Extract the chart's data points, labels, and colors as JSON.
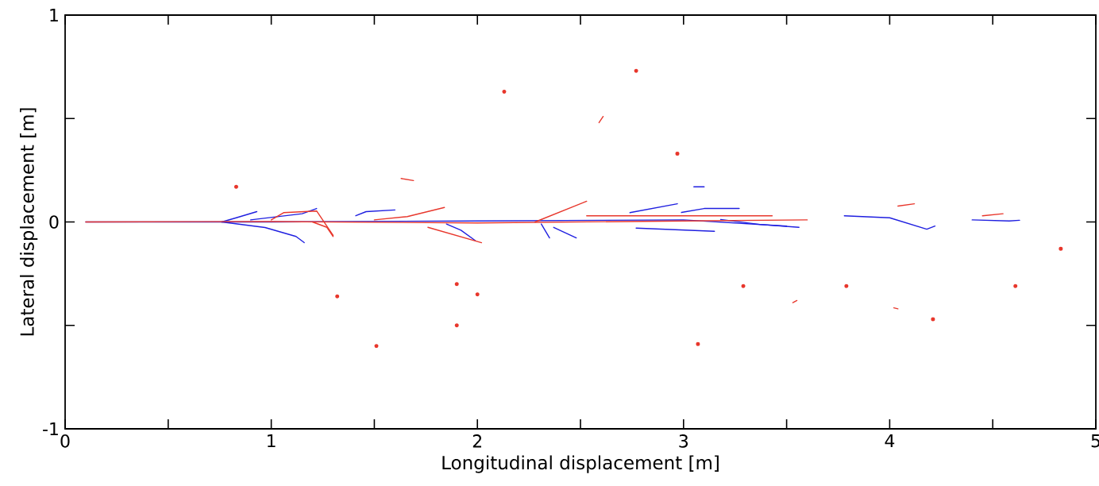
{
  "chart_data": {
    "type": "line",
    "xlabel": "Longitudinal displacement  [m]",
    "ylabel": "Lateral displacement  [m]",
    "xlim": [
      0,
      5
    ],
    "ylim": [
      -1,
      1
    ],
    "xticks": [
      0,
      {
        "value": 0.5,
        "label": null
      },
      1,
      {
        "value": 1.5,
        "label": null
      },
      2,
      {
        "value": 2.5,
        "label": null
      },
      3,
      {
        "value": 3.5,
        "label": null
      },
      4,
      {
        "value": 4.5,
        "label": null
      },
      5
    ],
    "yticks": [
      -1,
      {
        "value": -0.5,
        "label": null
      },
      0,
      {
        "value": 0.5,
        "label": null
      },
      1
    ],
    "grid": false,
    "marker": "none",
    "line_style": "solid",
    "series": [
      {
        "color": "#1f1fe0",
        "x": [
          0.1,
          1,
          2,
          3,
          3.5
        ],
        "values": [
          0,
          0,
          0.005,
          0.01,
          -0.02
        ]
      },
      {
        "color": "#1f1fe0",
        "x": [
          3.78,
          4.0,
          4.18,
          4.22
        ],
        "values": [
          0.03,
          0.02,
          -0.035,
          -0.02
        ]
      },
      {
        "color": "#1f1fe0",
        "x": [
          4.4,
          4.58,
          4.63
        ],
        "values": [
          0.01,
          0.005,
          0.008
        ]
      },
      {
        "color": "#1f1fe0",
        "x": [
          0.76,
          0.97,
          1.12,
          1.16
        ],
        "values": [
          0,
          -0.027,
          -0.07,
          -0.1
        ]
      },
      {
        "color": "#1f1fe0",
        "x": [
          0.76,
          0.83,
          0.93
        ],
        "values": [
          0,
          0.02,
          0.05
        ]
      },
      {
        "color": "#1f1fe0",
        "x": [
          1.41,
          1.46,
          1.6
        ],
        "values": [
          0.03,
          0.05,
          0.058
        ]
      },
      {
        "color": "#1f1fe0",
        "x": [
          1.85,
          1.92,
          1.99
        ],
        "values": [
          -0.01,
          -0.04,
          -0.09
        ]
      },
      {
        "color": "#1f1fe0",
        "x": [
          2.31,
          2.35
        ],
        "values": [
          -0.01,
          -0.077
        ]
      },
      {
        "color": "#1f1fe0",
        "x": [
          2.37,
          2.48
        ],
        "values": [
          -0.026,
          -0.077
        ]
      },
      {
        "color": "#1f1fe0",
        "x": [
          2.74,
          2.97
        ],
        "values": [
          0.045,
          0.088
        ]
      },
      {
        "color": "#1f1fe0",
        "x": [
          2.99,
          3.1,
          3.27
        ],
        "values": [
          0.046,
          0.065,
          0.065
        ]
      },
      {
        "color": "#1f1fe0",
        "x": [
          2.77,
          3.15
        ],
        "values": [
          -0.03,
          -0.045
        ]
      },
      {
        "color": "#1f1fe0",
        "x": [
          3.18,
          3.37,
          3.56
        ],
        "values": [
          0.012,
          -0.012,
          -0.026
        ]
      },
      {
        "color": "#1f1fe0",
        "x": [
          3.05,
          3.1
        ],
        "values": [
          0.17,
          0.17
        ]
      },
      {
        "color": "#1f1fe0",
        "x": [
          0.9,
          1.15,
          1.22
        ],
        "values": [
          0.01,
          0.04,
          0.065
        ]
      },
      {
        "color": "#e8372c",
        "x": [
          0.1,
          1,
          2,
          3,
          3.6
        ],
        "values": [
          0,
          0.002,
          -0.005,
          0.005,
          0.01
        ]
      },
      {
        "color": "#e8372c",
        "x": [
          1.0,
          1.06,
          1.22,
          1.3
        ],
        "values": [
          0.01,
          0.045,
          0.053,
          -0.065
        ]
      },
      {
        "color": "#e8372c",
        "x": [
          2.28,
          2.53
        ],
        "values": [
          0,
          0.1
        ]
      },
      {
        "color": "#e8372c",
        "x": [
          1.76,
          2.02
        ],
        "values": [
          -0.026,
          -0.1
        ]
      },
      {
        "color": "#e8372c",
        "x": [
          1.2,
          1.27,
          1.3
        ],
        "values": [
          0,
          -0.026,
          -0.07
        ]
      },
      {
        "color": "#e8372c",
        "x": [
          1.5,
          1.66,
          1.84
        ],
        "values": [
          0.01,
          0.026,
          0.07
        ]
      },
      {
        "color": "#e8372c",
        "x": [
          2.53,
          3.43
        ],
        "values": [
          0.03,
          0.03
        ]
      },
      {
        "color": "#e8372c",
        "x": [
          4.04,
          4.12
        ],
        "values": [
          0.077,
          0.088
        ]
      },
      {
        "color": "#e8372c",
        "x": [
          4.45,
          4.55
        ],
        "values": [
          0.03,
          0.04
        ]
      },
      {
        "color": "#e8372c",
        "x": [
          1.63,
          1.69
        ],
        "values": [
          0.21,
          0.2
        ]
      },
      {
        "color": "#e8372c",
        "x": [
          2.59,
          2.61
        ],
        "values": [
          0.48,
          0.51
        ]
      },
      {
        "color": "#e8372c",
        "x": [
          4.02,
          4.04
        ],
        "values": [
          -0.415,
          -0.42
        ]
      },
      {
        "color": "#e8372c",
        "x": [
          3.53,
          3.55
        ],
        "values": [
          -0.39,
          -0.38
        ]
      },
      {
        "type": "scatter",
        "color": "#e8372c",
        "x": [
          2.13,
          2.77,
          4.83,
          1.9,
          1.51,
          3.07,
          2.97,
          0.83,
          4.61,
          3.79,
          3.29,
          2.0,
          1.32,
          1.9,
          4.21
        ],
        "values": [
          0.63,
          0.73,
          -0.13,
          -0.5,
          -0.6,
          -0.59,
          0.33,
          0.17,
          -0.31,
          -0.31,
          -0.31,
          -0.35,
          -0.36,
          -0.3,
          -0.47
        ]
      }
    ]
  }
}
